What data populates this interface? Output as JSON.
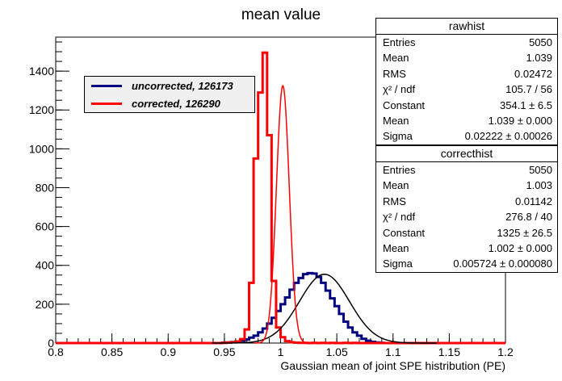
{
  "chart_data": {
    "type": "histogram",
    "title": "mean value",
    "xlabel": "Gaussian mean of joint SPE histribution (PE)",
    "ylabel": "",
    "xlim": [
      0.8,
      1.2
    ],
    "ylim": [
      0,
      1575
    ],
    "x_ticks": [
      0.8,
      0.85,
      0.9,
      0.95,
      1.0,
      1.05,
      1.1,
      1.15,
      1.2
    ],
    "x_tick_labels": [
      "0.8",
      "0.85",
      "0.9",
      "0.95",
      "1",
      "1.05",
      "1.1",
      "1.15",
      "1.2"
    ],
    "y_ticks": [
      0,
      200,
      400,
      600,
      800,
      1000,
      1200,
      1400
    ],
    "y_tick_labels": [
      "0",
      "200",
      "400",
      "600",
      "800",
      "1000",
      "1200",
      "1400"
    ],
    "grid": false,
    "legend_position": "top-left",
    "bin_width": 0.004,
    "series": [
      {
        "name": "uncorrected, 126173",
        "color": "#000080",
        "bin_start": 0.948,
        "values": [
          2,
          3,
          5,
          8,
          12,
          18,
          28,
          38,
          55,
          75,
          100,
          130,
          165,
          200,
          235,
          275,
          310,
          335,
          355,
          360,
          358,
          340,
          310,
          270,
          230,
          190,
          150,
          110,
          80,
          55,
          38,
          22,
          12,
          6,
          3,
          1
        ]
      },
      {
        "name": "corrected, 126290",
        "color": "#ff0000",
        "bin_start": 0.948,
        "values": [
          1,
          2,
          4,
          8,
          20,
          70,
          310,
          950,
          1290,
          1495,
          1070,
          320,
          80,
          30,
          10,
          4,
          2,
          1,
          1,
          0,
          1,
          0,
          1,
          0,
          1,
          0,
          0,
          1,
          0,
          1
        ]
      }
    ],
    "fits": [
      {
        "name": "rawhist gaus fit",
        "color": "#000000",
        "constant": 354.1,
        "mean": 1.039,
        "sigma": 0.02222
      },
      {
        "name": "correcthist gaus fit",
        "color": "#ff0000",
        "constant": 1325,
        "mean": 1.002,
        "sigma": 0.005724
      }
    ]
  },
  "legend": {
    "items": [
      {
        "label": "uncorrected, 126173",
        "color": "#000080"
      },
      {
        "label": "corrected, 126290",
        "color": "#ff0000"
      }
    ]
  },
  "stats": {
    "rawhist": {
      "title": "rawhist",
      "rows": [
        {
          "key": "Entries",
          "value": "5050"
        },
        {
          "key": "Mean",
          "value": "1.039"
        },
        {
          "key": "RMS",
          "value": "0.02472"
        },
        {
          "key": "χ² / ndf",
          "value": "105.7 / 56"
        },
        {
          "key": "Constant",
          "value": "354.1 ± 6.5"
        },
        {
          "key": "Mean",
          "value": "1.039 ± 0.000"
        },
        {
          "key": "Sigma",
          "value": "0.02222 ± 0.00026"
        }
      ]
    },
    "correcthist": {
      "title": "correcthist",
      "rows": [
        {
          "key": "Entries",
          "value": "5050"
        },
        {
          "key": "Mean",
          "value": "1.003"
        },
        {
          "key": "RMS",
          "value": "0.01142"
        },
        {
          "key": "χ² / ndf",
          "value": "276.8 / 40"
        },
        {
          "key": "Constant",
          "value": "1325 ± 26.5"
        },
        {
          "key": "Mean",
          "value": "1.002 ± 0.000"
        },
        {
          "key": "Sigma",
          "value": "0.005724 ± 0.000080"
        }
      ]
    }
  }
}
